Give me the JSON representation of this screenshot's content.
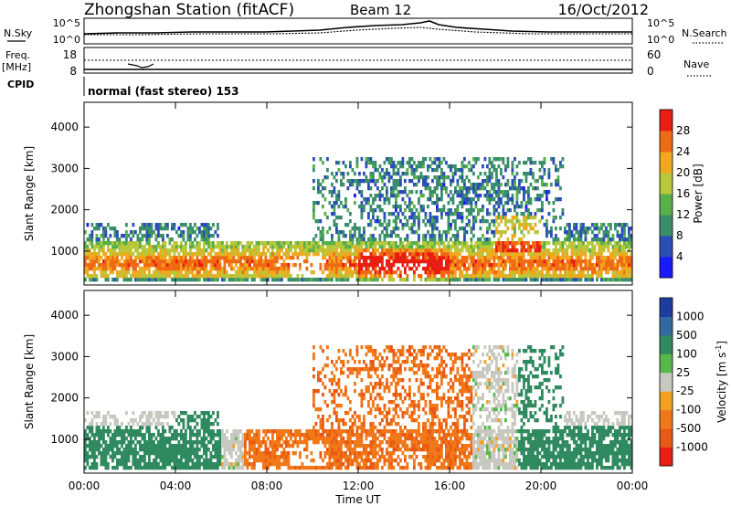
{
  "header": {
    "station": "Zhongshan Station (fitACF)",
    "beam": "Beam 12",
    "date": "16/Oct/2012"
  },
  "status_panels": {
    "nsky": {
      "label": "N.Sky",
      "ticks": [
        "10^5",
        "10^0"
      ]
    },
    "nsearch": {
      "label": "N.Search",
      "ticks": [
        "10^5",
        "10^0"
      ]
    },
    "freq": {
      "label": "Freq.",
      "unit": "[MHz]",
      "ticks": [
        "18",
        "8"
      ]
    },
    "nave": {
      "label": "Nave",
      "ticks": [
        "60",
        "0"
      ]
    },
    "cpid": {
      "label": "CPID",
      "text": "normal (fast stereo) 153"
    }
  },
  "chart_data": [
    {
      "type": "heatmap",
      "name": "power",
      "ylabel": "Slant Range [km]",
      "xlabel": "",
      "xlim": [
        0,
        24
      ],
      "ylim": [
        180,
        4600
      ],
      "y_ticks": [
        1000,
        2000,
        3000,
        4000
      ],
      "colorbar": {
        "label": "Power [dB]",
        "ticks": [
          "4",
          "8",
          "12",
          "16",
          "20",
          "24",
          "28"
        ],
        "colors": [
          "#1a1aff",
          "#2b4db8",
          "#3a8f6a",
          "#59b04b",
          "#b8c83a",
          "#f0a81f",
          "#f06a14",
          "#e81e12"
        ]
      }
    },
    {
      "type": "heatmap",
      "name": "velocity",
      "ylabel": "Slant Range [km]",
      "xlabel": "Time UT",
      "xlim": [
        0,
        24
      ],
      "ylim": [
        180,
        4600
      ],
      "x_ticks": [
        "00:00",
        "04:00",
        "08:00",
        "12:00",
        "16:00",
        "20:00",
        "00:00"
      ],
      "y_ticks": [
        1000,
        2000,
        3000,
        4000
      ],
      "colorbar": {
        "label": "Velocity [m s",
        "label_sup": "-1",
        "label_end": "]",
        "ticks": [
          "1000",
          "500",
          "100",
          "25",
          "-25",
          "-100",
          "-500",
          "-1000"
        ],
        "colors": [
          "#1e3ca0",
          "#2f6aa0",
          "#2f8a5f",
          "#56b84a",
          "#c8c8c0",
          "#f2a020",
          "#f07818",
          "#e85a14",
          "#e81e12"
        ]
      }
    }
  ]
}
